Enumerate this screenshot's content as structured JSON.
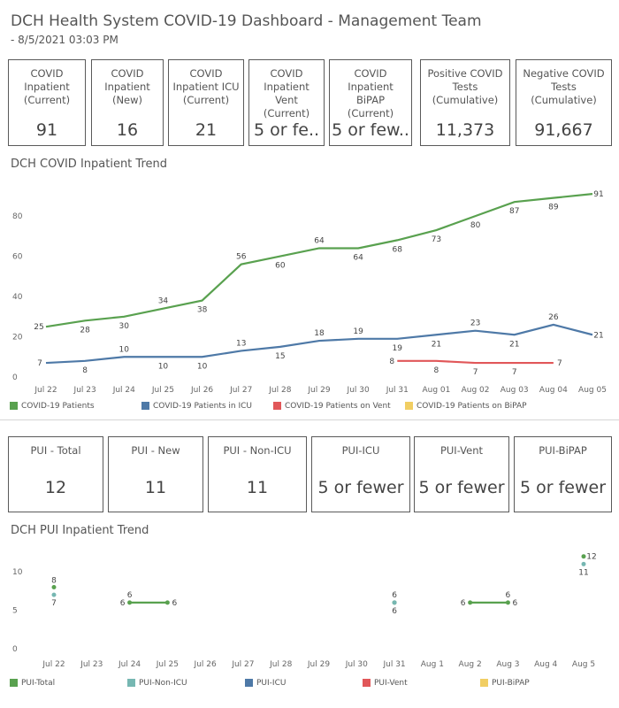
{
  "header": {
    "title": "DCH Health System COVID-19 Dashboard - Management Team",
    "subtitle": "- 8/5/2021 03:03 PM"
  },
  "kpis_top": [
    {
      "label": "COVID\nInpatient\n(Current)",
      "value": "91"
    },
    {
      "label": "COVID\nInpatient\n(New)",
      "value": "16"
    },
    {
      "label": "COVID\nInpatient ICU\n(Current)",
      "value": "21"
    },
    {
      "label": "COVID\nInpatient Vent\n(Current)",
      "value": "5 or fe.."
    },
    {
      "label": "COVID\nInpatient BiPAP\n(Current)",
      "value": "5 or few.."
    },
    {
      "label": "Positive COVID\nTests\n(Cumulative)",
      "value": "11,373"
    },
    {
      "label": "Negative COVID\nTests\n(Cumulative)",
      "value": "91,667"
    }
  ],
  "kpis_pui": [
    {
      "label": "PUI - Total",
      "value": "12"
    },
    {
      "label": "PUI - New",
      "value": "11"
    },
    {
      "label": "PUI - Non-ICU",
      "value": "11"
    },
    {
      "label": "PUI-ICU",
      "value": "5 or fewer"
    },
    {
      "label": "PUI-Vent",
      "value": "5 or fewer"
    },
    {
      "label": "PUI-BiPAP",
      "value": "5 or fewer"
    }
  ],
  "chart_data": [
    {
      "type": "line",
      "title": "DCH COVID Inpatient Trend",
      "categories": [
        "Jul 22",
        "Jul 23",
        "Jul 24",
        "Jul 25",
        "Jul 26",
        "Jul 27",
        "Jul 28",
        "Jul 29",
        "Jul 30",
        "Jul 31",
        "Aug 01",
        "Aug 02",
        "Aug 03",
        "Aug 04",
        "Aug 05"
      ],
      "ylim": [
        0,
        95
      ],
      "yticks": [
        0,
        20,
        40,
        60,
        80
      ],
      "grid": false,
      "legend_position": "bottom",
      "series": [
        {
          "name": "COVID-19 Patients",
          "color": "#59a14f",
          "values": [
            25,
            28,
            30,
            34,
            38,
            56,
            60,
            64,
            64,
            68,
            73,
            80,
            87,
            89,
            91
          ]
        },
        {
          "name": "COVID-19 Patients in ICU",
          "color": "#4e79a7",
          "values": [
            7,
            8,
            10,
            10,
            10,
            13,
            15,
            18,
            19,
            19,
            21,
            23,
            21,
            26,
            21
          ]
        },
        {
          "name": "COVID-19 Patients on Vent",
          "color": "#e15759",
          "values": [
            null,
            null,
            null,
            null,
            null,
            null,
            null,
            null,
            null,
            8,
            8,
            7,
            7,
            7,
            null
          ]
        },
        {
          "name": "COVID-19 Patients on BiPAP",
          "color": "#f1ce63",
          "values": [
            null,
            null,
            null,
            null,
            null,
            null,
            null,
            null,
            null,
            null,
            8,
            null,
            null,
            null,
            null
          ]
        }
      ]
    },
    {
      "type": "line",
      "title": "DCH PUI Inpatient Trend",
      "categories": [
        "Jul 22",
        "Jul 23",
        "Jul 24",
        "Jul 25",
        "Jul 26",
        "Jul 27",
        "Jul 28",
        "Jul 29",
        "Jul 30",
        "Jul 31",
        "Aug 1",
        "Aug 2",
        "Aug 3",
        "Aug 4",
        "Aug 5"
      ],
      "ylim": [
        0,
        13
      ],
      "yticks": [
        0,
        5,
        10
      ],
      "grid": false,
      "legend_position": "bottom",
      "series": [
        {
          "name": "PUI-Total",
          "color": "#59a14f",
          "values": [
            8,
            null,
            6,
            6,
            null,
            null,
            null,
            null,
            null,
            6,
            null,
            6,
            6,
            null,
            12
          ]
        },
        {
          "name": "PUI-Non-ICU",
          "color": "#76b7b2",
          "values": [
            7,
            null,
            null,
            null,
            null,
            null,
            null,
            null,
            null,
            6,
            null,
            null,
            null,
            null,
            11
          ]
        },
        {
          "name": "PUI-ICU",
          "color": "#4e79a7",
          "values": [
            null,
            null,
            null,
            null,
            null,
            null,
            null,
            null,
            null,
            null,
            null,
            null,
            null,
            null,
            null
          ]
        },
        {
          "name": "PUI-Vent",
          "color": "#e15759",
          "values": [
            null,
            null,
            null,
            null,
            null,
            null,
            null,
            null,
            null,
            null,
            null,
            null,
            null,
            null,
            null
          ]
        },
        {
          "name": "PUI-BiPAP",
          "color": "#f1ce63",
          "values": [
            null,
            null,
            null,
            null,
            null,
            null,
            null,
            null,
            null,
            null,
            null,
            null,
            null,
            null,
            null
          ]
        }
      ]
    }
  ]
}
